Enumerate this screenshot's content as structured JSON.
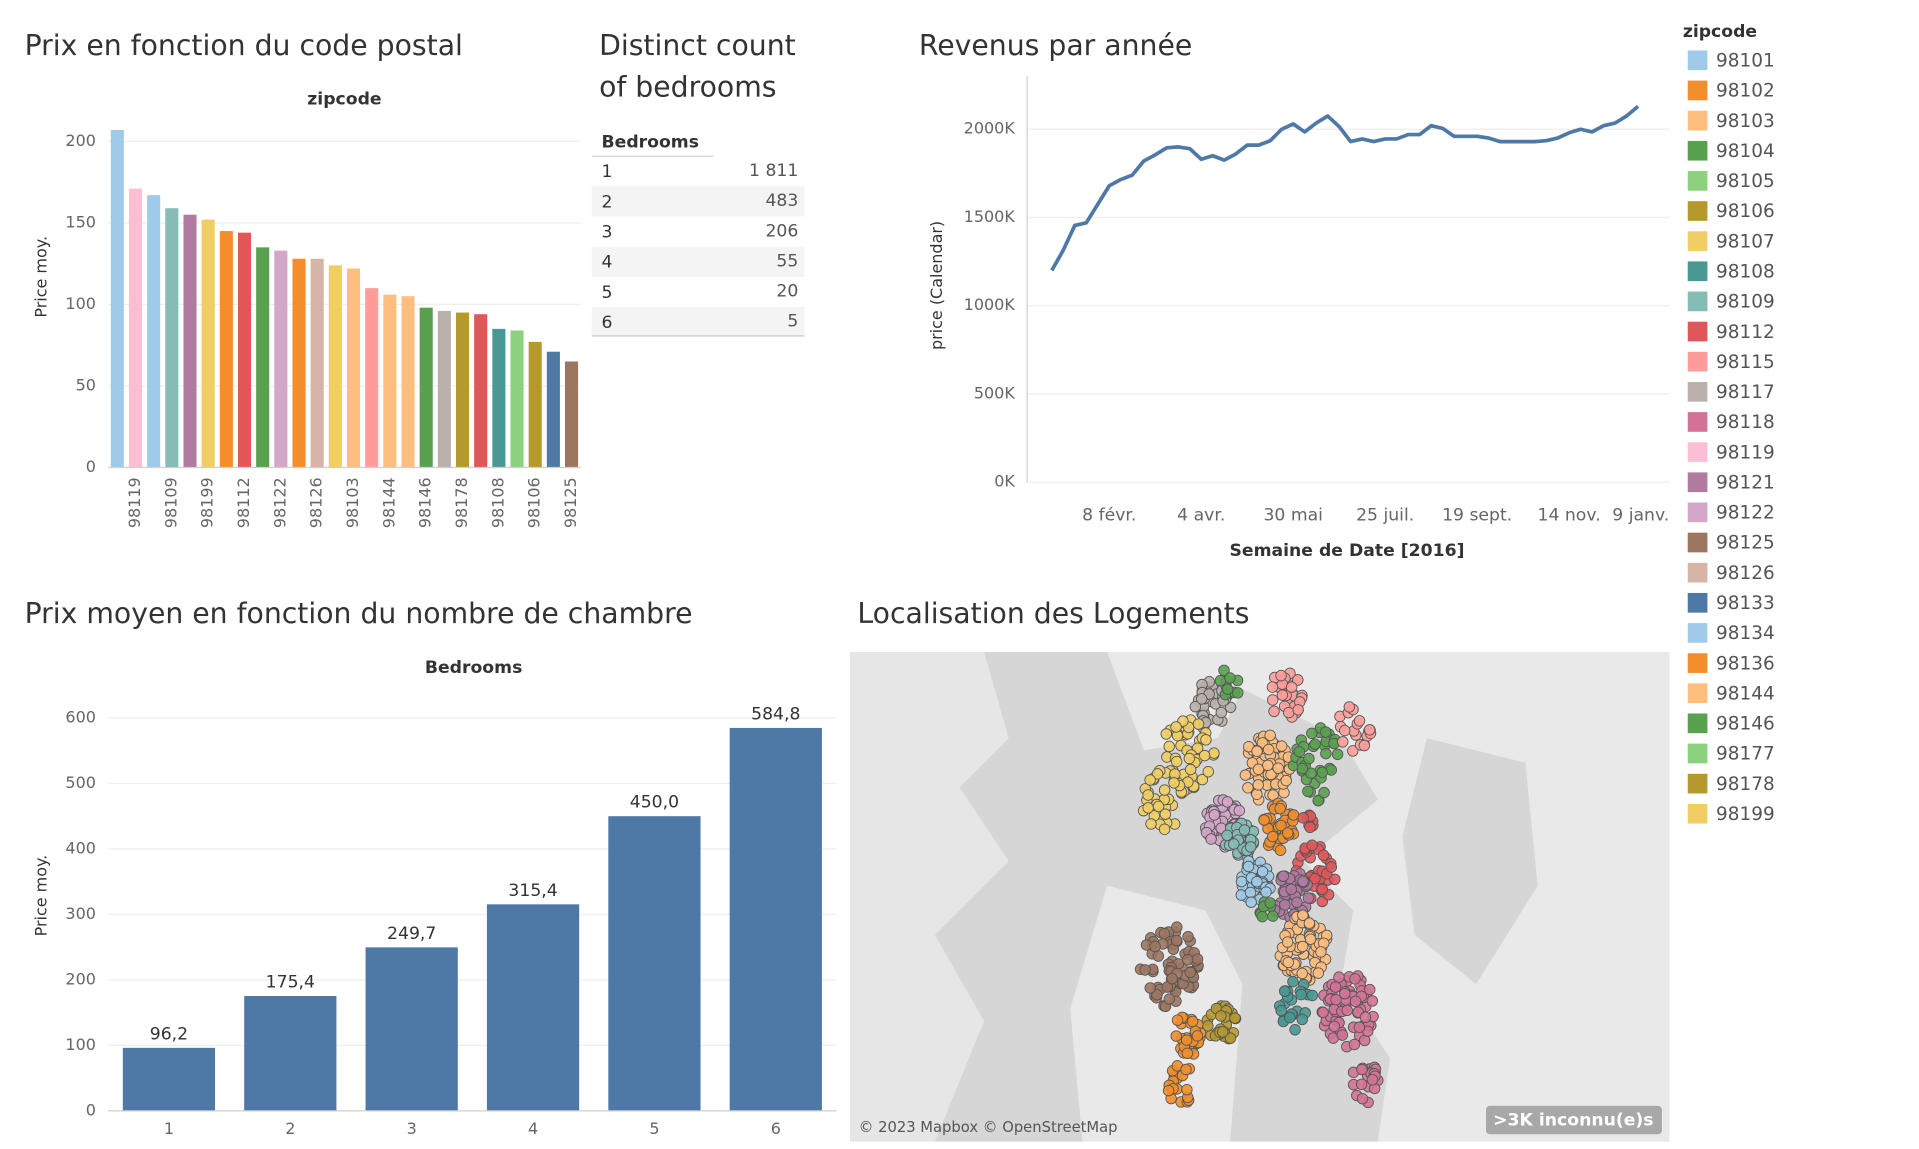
{
  "chart_data": [
    {
      "type": "bar",
      "title": "Prix en fonction du code postal",
      "column_header": "zipcode",
      "ylabel": "Price moy.",
      "categories": [
        null,
        "98119",
        null,
        "98109",
        null,
        "98199",
        null,
        "98112",
        null,
        "98122",
        null,
        "98126",
        null,
        "98103",
        null,
        "98144",
        null,
        "98146",
        null,
        "98178",
        null,
        "98108",
        null,
        "98106",
        null,
        "98125"
      ],
      "values": [
        207,
        171,
        167,
        159,
        155,
        152,
        145,
        144,
        135,
        133,
        128,
        128,
        124,
        122,
        110,
        106,
        105,
        98,
        96,
        95,
        94,
        85,
        84,
        77,
        71,
        65
      ],
      "colors": [
        "#a0cbe8",
        "#fabfd2",
        "#a0cbe8",
        "#86bcb6",
        "#b07aa1",
        "#f1ce63",
        "#f28e2b",
        "#e15759",
        "#59a14f",
        "#d4a6c8",
        "#f28e2b",
        "#d7b5a6",
        "#f1ce63",
        "#ffbe7d",
        "#ff9d9a",
        "#ffbe7d",
        "#ffbe7d",
        "#59a14f",
        "#bab0ac",
        "#b6992d",
        "#e15759",
        "#499894",
        "#8cd17d",
        "#b6992d",
        "#4e79a7",
        "#9d7660"
      ],
      "ylim": [
        0,
        215
      ],
      "yticks": [
        0,
        50,
        100,
        150,
        200
      ],
      "grid": true
    },
    {
      "type": "line",
      "title": "Revenus par année",
      "ylabel": "price (Calendar)",
      "xlabel": "Semaine de Date [2016]",
      "x": [
        "2016-01-04",
        "2016-01-11",
        "2016-01-18",
        "2016-01-25",
        "2016-02-01",
        "2016-02-08",
        "2016-02-15",
        "2016-02-22",
        "2016-02-29",
        "2016-03-07",
        "2016-03-14",
        "2016-03-21",
        "2016-03-28",
        "2016-04-04",
        "2016-04-11",
        "2016-04-18",
        "2016-04-25",
        "2016-05-02",
        "2016-05-09",
        "2016-05-16",
        "2016-05-23",
        "2016-05-30",
        "2016-06-06",
        "2016-06-13",
        "2016-06-20",
        "2016-06-27",
        "2016-07-04",
        "2016-07-11",
        "2016-07-18",
        "2016-07-25",
        "2016-08-01",
        "2016-08-08",
        "2016-08-15",
        "2016-08-22",
        "2016-08-29",
        "2016-09-05",
        "2016-09-12",
        "2016-09-19",
        "2016-09-26",
        "2016-10-03",
        "2016-10-10",
        "2016-10-17",
        "2016-10-24",
        "2016-10-31",
        "2016-11-07",
        "2016-11-14",
        "2016-11-21",
        "2016-11-28",
        "2016-12-05",
        "2016-12-12",
        "2016-12-19",
        "2016-12-26"
      ],
      "series": [
        {
          "name": "price (Calendar)",
          "color": "#4e79a7",
          "values": [
            1200000,
            1315000,
            1455000,
            1470000,
            1575000,
            1680000,
            1715000,
            1740000,
            1820000,
            1855000,
            1895000,
            1900000,
            1890000,
            1830000,
            1850000,
            1825000,
            1860000,
            1910000,
            1910000,
            1935000,
            2000000,
            2030000,
            1985000,
            2035000,
            2075000,
            2015000,
            1930000,
            1945000,
            1930000,
            1945000,
            1945000,
            1970000,
            1970000,
            2020000,
            2005000,
            1960000,
            1960000,
            1960000,
            1950000,
            1930000,
            1930000,
            1930000,
            1930000,
            1935000,
            1950000,
            1980000,
            2000000,
            1985000,
            2020000,
            2035000,
            2075000,
            2130000
          ]
        }
      ],
      "xlim": [
        "2015-12-20",
        "2017-01-14"
      ],
      "xticks": [
        {
          "value": "2016-02-08",
          "label": "8 févr."
        },
        {
          "value": "2016-04-04",
          "label": "4 avr."
        },
        {
          "value": "2016-05-30",
          "label": "30 mai"
        },
        {
          "value": "2016-07-25",
          "label": "25 juil."
        },
        {
          "value": "2016-09-19",
          "label": "19 sept."
        },
        {
          "value": "2016-11-14",
          "label": "14 nov."
        },
        {
          "value": "2017-01-09",
          "label": "9 janv."
        }
      ],
      "ylim": [
        0,
        2300000
      ],
      "yticks": [
        {
          "value": 0,
          "label": "0K"
        },
        {
          "value": 500000,
          "label": "500K"
        },
        {
          "value": 1000000,
          "label": "1000K"
        },
        {
          "value": 1500000,
          "label": "1500K"
        },
        {
          "value": 2000000,
          "label": "2000K"
        }
      ],
      "grid": true
    },
    {
      "type": "bar",
      "title": "Prix moyen en fonction du nombre de chambre",
      "column_header": "Bedrooms",
      "ylabel": "Price moy.",
      "categories": [
        "1",
        "2",
        "3",
        "4",
        "5",
        "6"
      ],
      "values": [
        96.2,
        175.4,
        249.7,
        315.4,
        450.0,
        584.8
      ],
      "value_labels": [
        "96,2",
        "175,4",
        "249,7",
        "315,4",
        "450,0",
        "584,8"
      ],
      "color": "#4e79a7",
      "ylim": [
        0,
        635
      ],
      "yticks": [
        0,
        100,
        200,
        300,
        400,
        500,
        600
      ],
      "grid": true
    }
  ],
  "table": {
    "title_lines": [
      "Distinct count",
      "of bedrooms"
    ],
    "header": "Bedrooms",
    "rows": [
      [
        "1",
        "1 811"
      ],
      [
        "2",
        "483"
      ],
      [
        "3",
        "206"
      ],
      [
        "4",
        "55"
      ],
      [
        "5",
        "20"
      ],
      [
        "6",
        "5"
      ]
    ]
  },
  "map": {
    "title": "Localisation des Logements",
    "attribution": "© 2023 Mapbox © OpenStreetMap",
    "badge": ">3K inconnu(e)s"
  },
  "legend": {
    "title": "zipcode",
    "items": [
      {
        "label": "98101",
        "color": "#a0cbe8"
      },
      {
        "label": "98102",
        "color": "#f28e2b"
      },
      {
        "label": "98103",
        "color": "#ffbe7d"
      },
      {
        "label": "98104",
        "color": "#59a14f"
      },
      {
        "label": "98105",
        "color": "#8cd17d"
      },
      {
        "label": "98106",
        "color": "#b6992d"
      },
      {
        "label": "98107",
        "color": "#f1ce63"
      },
      {
        "label": "98108",
        "color": "#499894"
      },
      {
        "label": "98109",
        "color": "#86bcb6"
      },
      {
        "label": "98112",
        "color": "#e15759"
      },
      {
        "label": "98115",
        "color": "#ff9d9a"
      },
      {
        "label": "98117",
        "color": "#bab0ac"
      },
      {
        "label": "98118",
        "color": "#d37295"
      },
      {
        "label": "98119",
        "color": "#fabfd2"
      },
      {
        "label": "98121",
        "color": "#b07aa1"
      },
      {
        "label": "98122",
        "color": "#d4a6c8"
      },
      {
        "label": "98125",
        "color": "#9d7660"
      },
      {
        "label": "98126",
        "color": "#d7b5a6"
      },
      {
        "label": "98133",
        "color": "#4e79a7"
      },
      {
        "label": "98134",
        "color": "#a0cbe8"
      },
      {
        "label": "98136",
        "color": "#f28e2b"
      },
      {
        "label": "98144",
        "color": "#ffbe7d"
      },
      {
        "label": "98146",
        "color": "#59a14f"
      },
      {
        "label": "98177",
        "color": "#8cd17d"
      },
      {
        "label": "98178",
        "color": "#b6992d"
      },
      {
        "label": "98199",
        "color": "#f1ce63"
      }
    ]
  }
}
